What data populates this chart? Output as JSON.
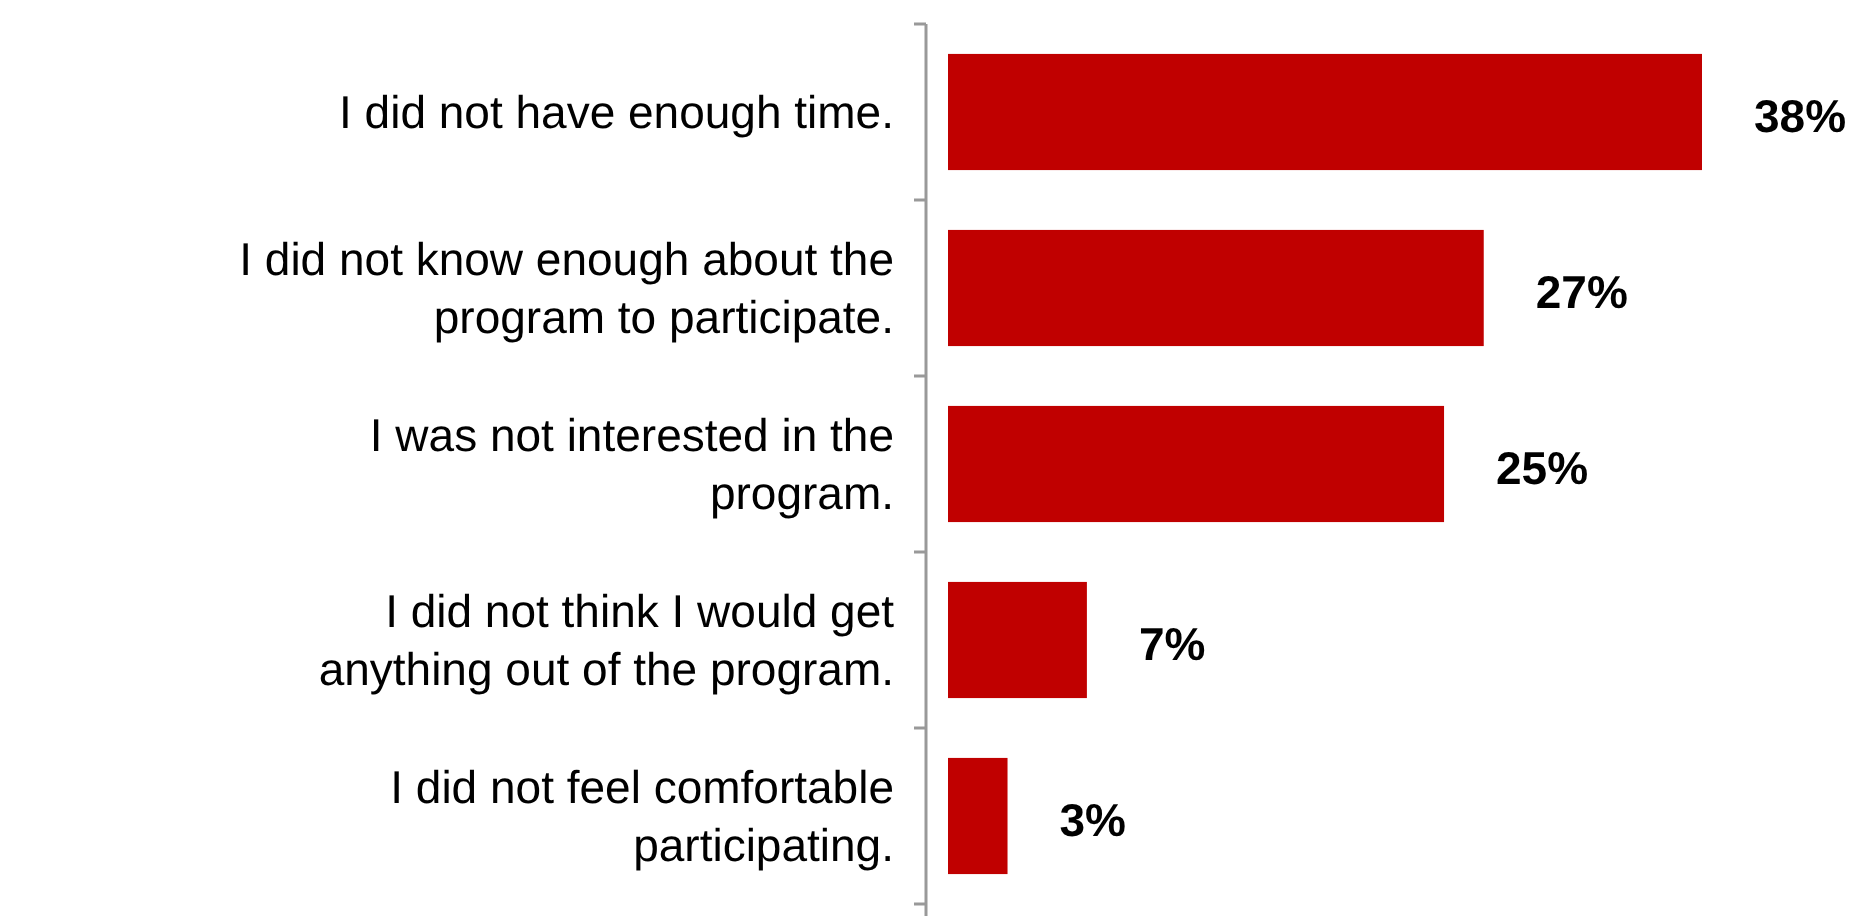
{
  "chart_data": {
    "type": "bar",
    "orientation": "horizontal",
    "categories": [
      "I did not have enough time.",
      "I did not know enough about the program to participate.",
      "I was not interested in the program.",
      "I did not think I would get anything out of the program.",
      "I did not feel comfortable participating."
    ],
    "values": [
      38,
      27,
      25,
      7,
      3
    ],
    "value_labels": [
      "38%",
      "27%",
      "25%",
      "7%",
      "3%"
    ],
    "color": "#c00000"
  }
}
